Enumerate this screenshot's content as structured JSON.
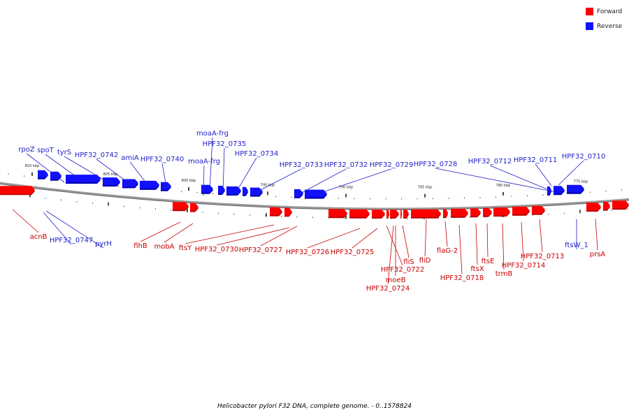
{
  "legend": {
    "items": [
      {
        "label": "Forward",
        "color": "#ff0000"
      },
      {
        "label": "Reverse",
        "color": "#1010ff"
      }
    ]
  },
  "caption": "Helicobacter pylori F32 DNA, complete genome. - 0..1578824",
  "colors": {
    "forward": "#ff0000",
    "forward_shadow": "#bb0000",
    "reverse": "#1010ff",
    "reverse_shadow": "#0000aa",
    "forward_label": "#c80000",
    "reverse_label": "#1e1ec8",
    "backbone": "#888888"
  },
  "scale": {
    "ticks": [
      {
        "label": "810 kbp"
      },
      {
        "label": "805 kbp"
      },
      {
        "label": "800 kbp"
      },
      {
        "label": "795 kbp"
      },
      {
        "label": "790 kbp"
      },
      {
        "label": "785 kbp"
      },
      {
        "label": "780 kbp"
      },
      {
        "label": "775 kbp"
      }
    ]
  },
  "genes": {
    "reverse": [
      {
        "name": "rpoZ"
      },
      {
        "name": "spoT"
      },
      {
        "name": "tyrS"
      },
      {
        "name": "HPF32_0742"
      },
      {
        "name": "amiA"
      },
      {
        "name": "HPF32_0740"
      },
      {
        "name": "moaA-frg"
      },
      {
        "name": "HPF32_0735"
      },
      {
        "name": "moaA-frg"
      },
      {
        "name": "HPF32_0734"
      },
      {
        "name": "HPF32_0733"
      },
      {
        "name": "HPF32_0732"
      },
      {
        "name": "HPF32_0729"
      },
      {
        "name": "HPF32_0728"
      },
      {
        "name": "HPF32_0712"
      },
      {
        "name": "HPF32_0711"
      },
      {
        "name": "HPF32_0710"
      },
      {
        "name": "HPF32_0747"
      },
      {
        "name": "pyrH"
      },
      {
        "name": "ftsW_1"
      }
    ],
    "forward": [
      {
        "name": "acnB"
      },
      {
        "name": "flhB"
      },
      {
        "name": "mobA"
      },
      {
        "name": "ftsY"
      },
      {
        "name": "HPF32_0730"
      },
      {
        "name": "HPF32_0727"
      },
      {
        "name": "HPF32_0726"
      },
      {
        "name": "HPF32_0725"
      },
      {
        "name": "HPF32_0722"
      },
      {
        "name": "moeB"
      },
      {
        "name": "HPF32_0724"
      },
      {
        "name": "fliS"
      },
      {
        "name": "fliD"
      },
      {
        "name": "flaG-2"
      },
      {
        "name": "HPF32_0718"
      },
      {
        "name": "ftsX"
      },
      {
        "name": "ftsE"
      },
      {
        "name": "trmB"
      },
      {
        "name": "HPF32_0714"
      },
      {
        "name": "HPF32_0713"
      },
      {
        "name": "prsA"
      }
    ]
  }
}
